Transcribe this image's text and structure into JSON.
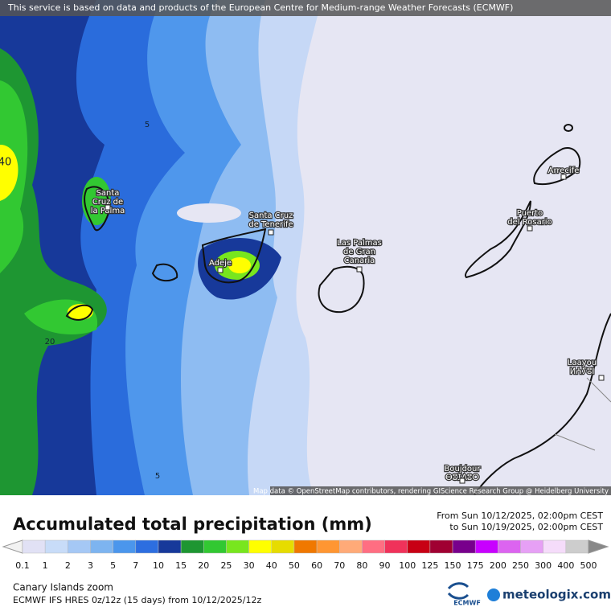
{
  "header": {
    "notice": "This service is based on data and products of the European Centre for Medium-range Weather Forecasts (ECMWF)"
  },
  "map": {
    "attribution": "Map data © OpenStreetMap contributors, rendering GIScience Research Group @ Heidelberg University",
    "contour_labels": [
      "5",
      "20",
      "5",
      "40"
    ],
    "cities": [
      {
        "lines": [
          "Santa",
          "Cruz de",
          "la Palma"
        ]
      },
      {
        "lines": [
          "Santa Cruz",
          "de Tenerife"
        ]
      },
      {
        "lines": [
          "Adeje"
        ]
      },
      {
        "lines": [
          "Las Palmas",
          "de Gran",
          "Canaria"
        ]
      },
      {
        "lines": [
          "Puerto",
          "del Rosario"
        ]
      },
      {
        "lines": [
          "Arrecife"
        ]
      },
      {
        "lines": [
          "Laayou",
          "ⵍⵄⵢⵓⵏ"
        ]
      },
      {
        "lines": [
          "Boujdour",
          "ⴱⵓⵊⴷⵓⵔ"
        ]
      }
    ]
  },
  "legend": {
    "title": "Accumulated total precipitation (mm)",
    "period": [
      "From Sun 10/12/2025, 02:00pm CEST",
      "to Sun 10/19/2025, 02:00pm CEST"
    ],
    "labels": [
      0.1,
      1,
      2,
      3,
      5,
      7,
      10,
      15,
      20,
      25,
      30,
      40,
      50,
      60,
      70,
      80,
      90,
      100,
      125,
      150,
      175,
      200,
      250,
      300,
      400,
      500
    ],
    "colors": [
      "#e1e1f5",
      "#c8dcf8",
      "#a5c8f5",
      "#7db4f0",
      "#4b96ec",
      "#2d6ee0",
      "#17399a",
      "#1e9632",
      "#32c832",
      "#78e61e",
      "#ffff00",
      "#e6dc00",
      "#f07800",
      "#ff9632",
      "#ffaa78",
      "#ff6e82",
      "#f0325a",
      "#c80014",
      "#a00032",
      "#78008c",
      "#c800ff",
      "#dc64f0",
      "#e6a0f5",
      "#f5dcfa",
      "#cdcdcd"
    ]
  },
  "footer": {
    "region": "Canary Islands zoom",
    "model": "ECMWF IFS HRES 0z/12z (15 days) from  10/12/2025/12z",
    "ecmwf": "ECMWF",
    "brand": "meteologix.com"
  }
}
